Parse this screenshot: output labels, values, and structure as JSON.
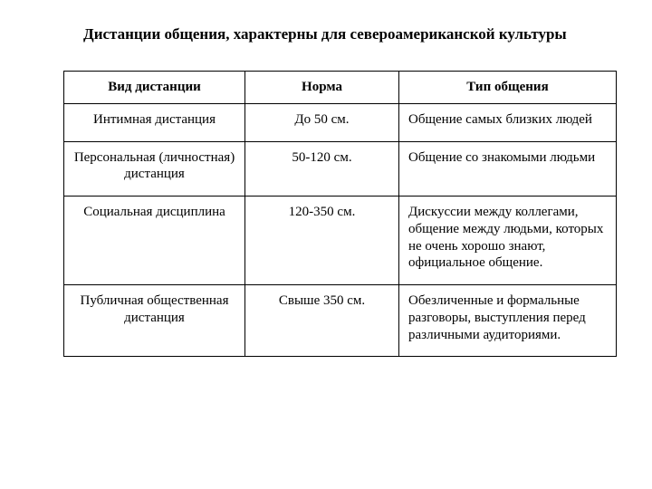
{
  "title": "Дистанции общения, характерны для североамериканской культуры",
  "table": {
    "columns": [
      "Вид дистанции",
      "Норма",
      "Тип общения"
    ],
    "rows": [
      {
        "c0": "Интимная дистанция",
        "c1": "До 50 см.",
        "c2": "Общение самых близких людей"
      },
      {
        "c0": "Персональная (личностная) дистанция",
        "c1": "50-120 см.",
        "c2": "Общение со знакомыми людьми"
      },
      {
        "c0": "Социальная дисциплина",
        "c1": "120-350 см.",
        "c2": "Дискуссии между коллегами, общение между людьми, которых не очень хорошо знают, официальное общение."
      },
      {
        "c0": "Публичная общественная дистанция",
        "c1": "Свыше 350 см.",
        "c2": "Обезличенные и формальные разговоры, выступления перед различными аудиториями."
      }
    ],
    "column_align": [
      "center",
      "center",
      "left"
    ],
    "border_color": "#000000",
    "background_color": "#ffffff",
    "header_font_weight": "bold",
    "font_family": "Times New Roman",
    "cell_fontsize": 15,
    "title_fontsize": 17
  }
}
